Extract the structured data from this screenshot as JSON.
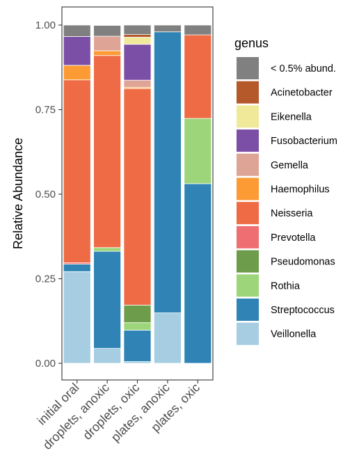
{
  "chart_data": {
    "type": "bar",
    "stacked": true,
    "ylabel": "Relative Abundance",
    "xlabel": "",
    "ylim": [
      0,
      1
    ],
    "y_ticks": [
      "0.00",
      "0.25",
      "0.50",
      "0.75",
      "1.00"
    ],
    "y_tick_values": [
      0,
      0.25,
      0.5,
      0.75,
      1.0
    ],
    "grid": false,
    "legend_position": "right",
    "categories": [
      "initial oral",
      "droplets, anoxic",
      "droplets, oxic",
      "plates, anoxic",
      "plates, oxic"
    ],
    "legend": {
      "title": "genus",
      "items": [
        {
          "name": "< 0.5% abund.",
          "color": "#808080"
        },
        {
          "name": "Acinetobacter",
          "color": "#b5582a"
        },
        {
          "name": "Eikenella",
          "color": "#f0e99a"
        },
        {
          "name": "Fusobacterium",
          "color": "#7b4fa6"
        },
        {
          "name": "Gemella",
          "color": "#dea596"
        },
        {
          "name": "Haemophilus",
          "color": "#fc9a34"
        },
        {
          "name": "Neisseria",
          "color": "#ee6b45"
        },
        {
          "name": "Prevotella",
          "color": "#ee6e72"
        },
        {
          "name": "Pseudomonas",
          "color": "#6d9c4a"
        },
        {
          "name": "Rothia",
          "color": "#9dd67a"
        },
        {
          "name": "Streptococcus",
          "color": "#2f84b5"
        },
        {
          "name": "Veillonella",
          "color": "#a6cde2"
        }
      ]
    },
    "series": [
      {
        "name": "Veillonella",
        "color": "#a6cde2",
        "values": [
          0.271,
          0.044,
          0.005,
          0.149,
          0.0
        ]
      },
      {
        "name": "Streptococcus",
        "color": "#2f84b5",
        "values": [
          0.022,
          0.287,
          0.093,
          0.831,
          0.531
        ]
      },
      {
        "name": "Rothia",
        "color": "#9dd67a",
        "values": [
          0.0,
          0.011,
          0.022,
          0.0,
          0.193
        ]
      },
      {
        "name": "Pseudomonas",
        "color": "#6d9c4a",
        "values": [
          0.0,
          0.0,
          0.052,
          0.0,
          0.0
        ]
      },
      {
        "name": "Prevotella",
        "color": "#ee6e72",
        "values": [
          0.004,
          0.0,
          0.0,
          0.0,
          0.0
        ]
      },
      {
        "name": "Neisseria",
        "color": "#ee6b45",
        "values": [
          0.541,
          0.568,
          0.64,
          0.0,
          0.247
        ]
      },
      {
        "name": "Haemophilus",
        "color": "#fc9a34",
        "values": [
          0.043,
          0.014,
          0.004,
          0.0,
          0.0
        ]
      },
      {
        "name": "Gemella",
        "color": "#dea596",
        "values": [
          0.0,
          0.043,
          0.021,
          0.0,
          0.0
        ]
      },
      {
        "name": "Fusobacterium",
        "color": "#7b4fa6",
        "values": [
          0.085,
          0.0,
          0.106,
          0.0,
          0.0
        ]
      },
      {
        "name": "Eikenella",
        "color": "#f0e99a",
        "values": [
          0.0,
          0.0,
          0.021,
          0.0,
          0.0
        ]
      },
      {
        "name": "Acinetobacter",
        "color": "#b5582a",
        "values": [
          0.0,
          0.0,
          0.008,
          0.0,
          0.0
        ]
      },
      {
        "name": "< 0.5% abund.",
        "color": "#808080",
        "values": [
          0.034,
          0.032,
          0.028,
          0.02,
          0.029
        ]
      }
    ]
  }
}
